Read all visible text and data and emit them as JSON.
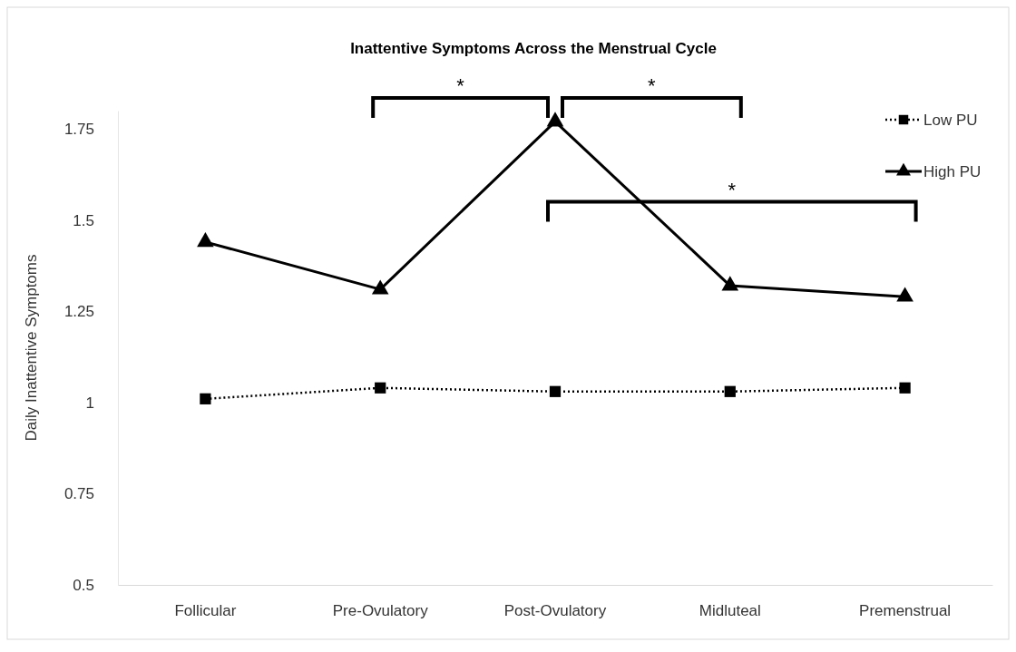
{
  "chart_data": {
    "type": "line",
    "title": "Inattentive Symptoms Across the Menstrual Cycle",
    "ylabel": "Daily Inattentive Symptoms",
    "categories": [
      "Follicular",
      "Pre-Ovulatory",
      "Post-Ovulatory",
      "Midluteal",
      "Premenstrual"
    ],
    "series": [
      {
        "name": "Low PU",
        "color": "#000000",
        "values": [
          1.01,
          1.04,
          1.03,
          1.03,
          1.04
        ],
        "marker": "square",
        "line_style": "dotted"
      },
      {
        "name": "High PU",
        "color": "#000000",
        "values": [
          1.44,
          1.31,
          1.77,
          1.32,
          1.29
        ],
        "marker": "triangle",
        "line_style": "solid"
      }
    ],
    "ylim": [
      0.5,
      1.8
    ],
    "yticks": [
      0.5,
      0.75,
      1,
      1.25,
      1.5,
      1.75
    ],
    "grid": false,
    "legend": "top right",
    "annotations": [
      "*",
      "*",
      "*"
    ]
  }
}
